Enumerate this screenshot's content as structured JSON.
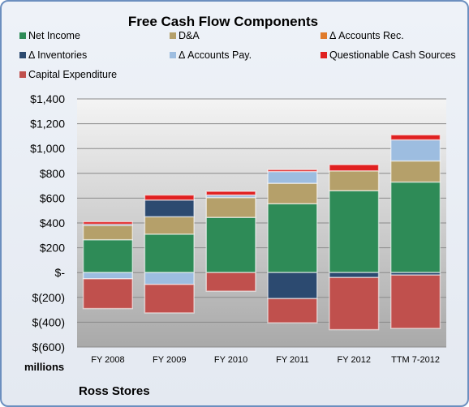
{
  "chart_data": {
    "type": "bar",
    "stacked": true,
    "title": "Free Cash Flow Components",
    "categories": [
      "FY 2008",
      "FY 2009",
      "FY 2010",
      "FY 2011",
      "FY 2012",
      "TTM 7-2012"
    ],
    "series": [
      {
        "name": "Net Income",
        "color": "#2e8b57",
        "values": [
          265,
          310,
          445,
          555,
          660,
          730
        ]
      },
      {
        "name": "D&A",
        "color": "#b5a06a",
        "values": [
          115,
          140,
          160,
          165,
          160,
          170
        ]
      },
      {
        "name": "Δ Accounts Rec.",
        "color": "#e07b2c",
        "values": [
          0,
          0,
          0,
          0,
          0,
          0
        ]
      },
      {
        "name": "Δ Inventories",
        "color": "#2c4a70",
        "values": [
          10,
          135,
          0,
          -210,
          -40,
          -20
        ]
      },
      {
        "name": "Δ Accounts Pay.",
        "color": "#9dbde0",
        "values": [
          -50,
          -95,
          20,
          95,
          0,
          170
        ]
      },
      {
        "name": "Questionable Cash Sources",
        "color": "#e02020",
        "values": [
          20,
          40,
          30,
          15,
          50,
          40
        ]
      },
      {
        "name": "Capital Expenditure",
        "color": "#c0504d",
        "values": [
          -240,
          -230,
          -150,
          -195,
          -420,
          -430
        ]
      }
    ],
    "ylim": [
      -600,
      1400
    ],
    "yticks": [
      "$(600)",
      "$(400)",
      "$(200)",
      "$-",
      "$200",
      "$400",
      "$600",
      "$800",
      "$1,000",
      "$1,200",
      "$1,400"
    ],
    "unit_label": "millions",
    "footer": "Ross Stores",
    "grid": true,
    "legend_position": "top"
  }
}
